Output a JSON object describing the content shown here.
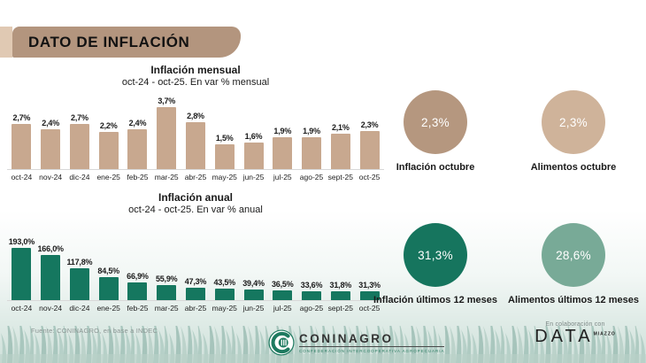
{
  "header": {
    "title": "DATO DE INFLACIÓN"
  },
  "chart_data": [
    {
      "type": "bar",
      "title": "Inflación mensual",
      "subtitle": "oct-24 - oct-25. En var % mensual",
      "categories": [
        "oct-24",
        "nov-24",
        "dic-24",
        "ene-25",
        "feb-25",
        "mar-25",
        "abr-25",
        "may-25",
        "jun-25",
        "jul-25",
        "ago-25",
        "sept-25",
        "oct-25"
      ],
      "values": [
        2.7,
        2.4,
        2.7,
        2.2,
        2.4,
        3.7,
        2.8,
        1.5,
        1.6,
        1.9,
        1.9,
        2.1,
        2.3
      ],
      "value_labels": [
        "2,7%",
        "2,4%",
        "2,7%",
        "2,2%",
        "2,4%",
        "3,7%",
        "2,8%",
        "1,5%",
        "1,6%",
        "1,9%",
        "1,9%",
        "2,1%",
        "2,3%"
      ],
      "bar_color": "#c8a88f",
      "ylim": [
        0,
        3.7
      ],
      "grid": false,
      "legend": "none"
    },
    {
      "type": "bar",
      "title": "Inflación anual",
      "subtitle": "oct-24 - oct-25. En var % anual",
      "categories": [
        "oct-24",
        "nov-24",
        "dic-24",
        "ene-25",
        "feb-25",
        "mar-25",
        "abr-25",
        "may-25",
        "jun-25",
        "jul-25",
        "ago-25",
        "sept-25",
        "oct-25"
      ],
      "values": [
        193.0,
        166.0,
        117.8,
        84.5,
        66.9,
        55.9,
        47.3,
        43.5,
        39.4,
        36.5,
        33.6,
        31.8,
        31.3
      ],
      "value_labels": [
        "193,0%",
        "166,0%",
        "117,8%",
        "84,5%",
        "66,9%",
        "55,9%",
        "47,3%",
        "43,5%",
        "39,4%",
        "36,5%",
        "33,6%",
        "31,8%",
        "31,3%"
      ],
      "bar_color": "#15775f",
      "ylim": [
        0,
        193
      ],
      "grid": false,
      "legend": "none"
    }
  ],
  "kpis": [
    {
      "value": "2,3%",
      "label": "Inflación octubre",
      "color": "#b5977f"
    },
    {
      "value": "2,3%",
      "label": "Alimentos octubre",
      "color": "#cfb39a"
    },
    {
      "value": "31,3%",
      "label": "Inflación últimos 12 meses",
      "color": "#16755e"
    },
    {
      "value": "28,6%",
      "label": "Alimentos últimos 12 meses",
      "color": "#78aa97"
    }
  ],
  "footer": {
    "source": "Fuente: CONINAGRO, en base a INDEC",
    "coninagro_name": "CONINAGRO",
    "coninagro_tagline": "CONFEDERACIÓN INTERCOOPERATIVA AGROPECUARIA",
    "collab_prefix": "En colaboración con",
    "collab_brand": "DATA",
    "collab_brand_sup": "MIAZZO"
  },
  "colors": {
    "banner": "#b3957e",
    "banner_tab": "#e0c9b3",
    "monthly_bars": "#c8a88f",
    "annual_bars": "#15775f",
    "grass_light": "#bcd3cb",
    "grass_dark": "#a6c4bb",
    "background_bottom": "#cfe0da"
  }
}
